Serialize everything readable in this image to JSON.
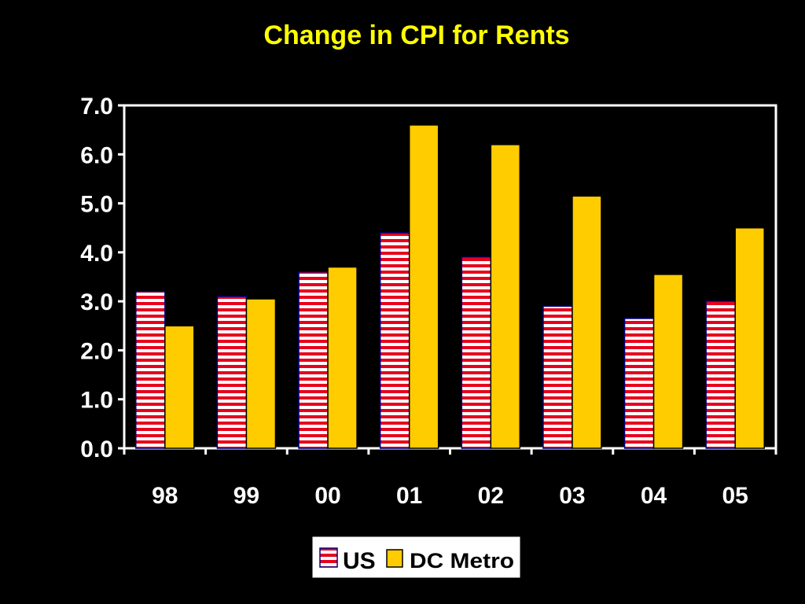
{
  "chart_data": {
    "type": "bar",
    "title": "Change in CPI for Rents",
    "xlabel": "",
    "ylabel": "",
    "categories": [
      "98",
      "99",
      "00",
      "01",
      "02",
      "03",
      "04",
      "05"
    ],
    "series": [
      {
        "name": "US",
        "values": [
          3.2,
          3.1,
          3.6,
          4.4,
          3.9,
          2.9,
          2.65,
          3.0
        ],
        "color": "#E8001C",
        "pattern": "horizontal-stripes"
      },
      {
        "name": "DC Metro",
        "values": [
          2.5,
          3.05,
          3.7,
          6.6,
          6.2,
          5.15,
          3.55,
          4.5
        ],
        "color": "#FFCC00",
        "pattern": "solid"
      }
    ],
    "ylim": [
      0,
      7
    ],
    "yticks": [
      "0.0",
      "1.0",
      "2.0",
      "3.0",
      "4.0",
      "5.0",
      "6.0",
      "7.0"
    ],
    "grid": false,
    "legend": "bottom"
  },
  "colors": {
    "background": "#000000",
    "title": "#FFFF00",
    "axis": "#FFFFFF",
    "text": "#FFFFFF",
    "legend_background": "#FFFFFF"
  }
}
